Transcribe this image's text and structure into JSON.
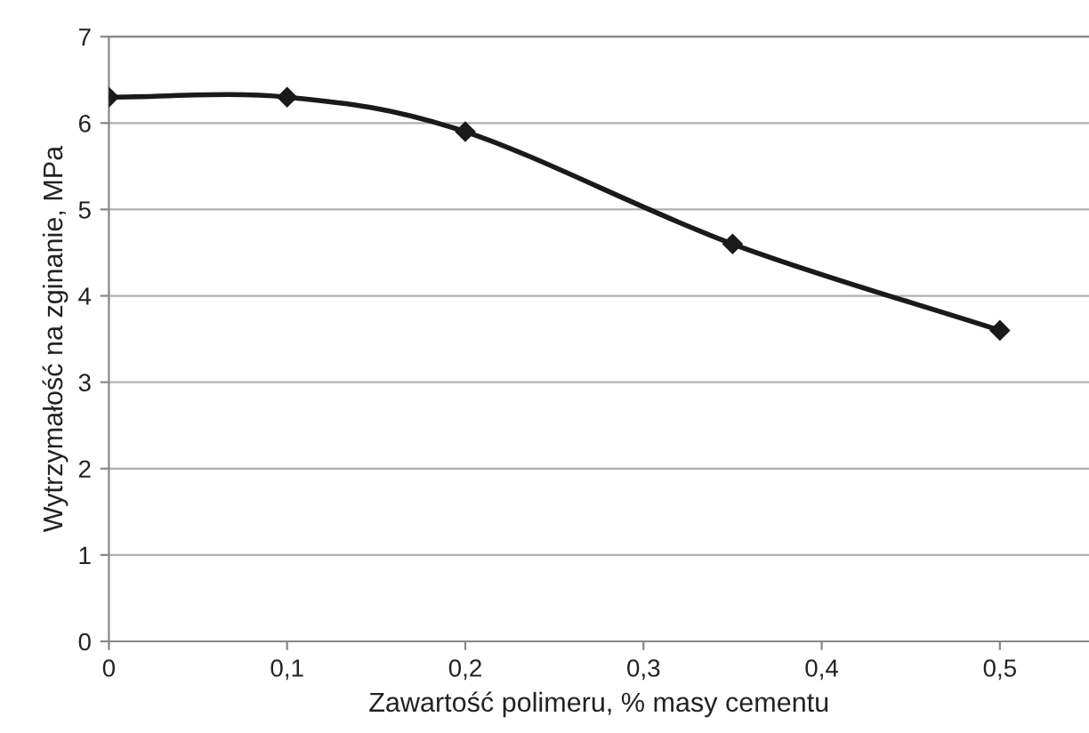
{
  "chart_data": {
    "type": "line",
    "xlabel": "Zawartość polimeru, % masy cementu",
    "ylabel": "Wytrzymałość na zginanie, MPa",
    "x": [
      0,
      0.1,
      0.2,
      0.35,
      0.5
    ],
    "series": [
      {
        "color": "#1a1a1a",
        "values": [
          6.3,
          6.3,
          5.9,
          4.6,
          3.6
        ]
      }
    ],
    "marker": "diamond",
    "line_style": "solid",
    "grid": "y",
    "legend": false,
    "xlim": [
      0,
      0.55
    ],
    "ylim": [
      0,
      7
    ],
    "xticks": [
      0,
      {
        "value": 0.1,
        "label": "0,1"
      },
      {
        "value": 0.2,
        "label": "0,2"
      },
      {
        "value": 0.3,
        "label": "0,3"
      },
      {
        "value": 0.4,
        "label": "0,4"
      },
      {
        "value": 0.5,
        "label": "0,5"
      }
    ],
    "yticks": [
      0,
      1,
      2,
      3,
      4,
      5,
      6,
      7
    ]
  }
}
